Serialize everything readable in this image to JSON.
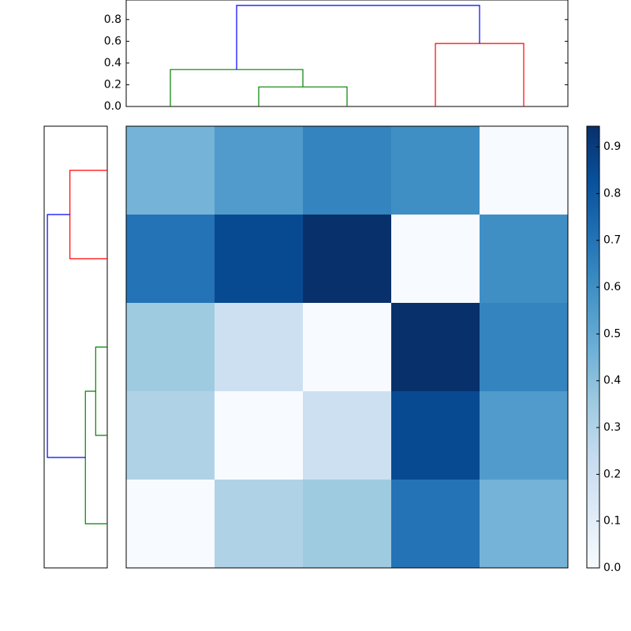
{
  "chart_data": [
    {
      "type": "dendrogram",
      "orientation": "top",
      "icoord": [
        [
          15,
          15,
          25,
          25
        ],
        [
          5,
          5,
          20,
          20
        ],
        [
          35,
          35,
          45,
          45
        ],
        [
          12.5,
          12.5,
          40,
          40
        ]
      ],
      "dcoord": [
        [
          0,
          0.18,
          0.18,
          0
        ],
        [
          0,
          0.34,
          0.34,
          0.18
        ],
        [
          0,
          0.58,
          0.58,
          0
        ],
        [
          0.34,
          0.93,
          0.93,
          0.58
        ]
      ],
      "link_colors": [
        "#008000",
        "#008000",
        "#ff0000",
        "#0000ff"
      ],
      "xlim": [
        0,
        50
      ],
      "ylim": [
        0,
        0.98
      ],
      "yticks": [
        {
          "value": 0,
          "label": "0.0"
        },
        {
          "value": 0.2,
          "label": "0.2"
        },
        {
          "value": 0.4,
          "label": "0.4"
        },
        {
          "value": 0.6,
          "label": "0.6"
        },
        {
          "value": 0.8,
          "label": "0.8"
        }
      ]
    },
    {
      "type": "dendrogram",
      "orientation": "left",
      "icoord": [
        [
          15,
          15,
          25,
          25
        ],
        [
          5,
          5,
          20,
          20
        ],
        [
          35,
          35,
          45,
          45
        ],
        [
          12.5,
          12.5,
          40,
          40
        ]
      ],
      "dcoord": [
        [
          0,
          0.18,
          0.18,
          0
        ],
        [
          0,
          0.34,
          0.34,
          0.18
        ],
        [
          0,
          0.58,
          0.58,
          0
        ],
        [
          0.34,
          0.93,
          0.93,
          0.58
        ]
      ],
      "link_colors": [
        "#008000",
        "#008000",
        "#ff0000",
        "#0000ff"
      ],
      "xlim": [
        0.98,
        0
      ],
      "ylim": [
        0,
        50
      ]
    },
    {
      "type": "heatmap",
      "values": [
        [
          0.45,
          0.55,
          0.64,
          0.6,
          0
        ],
        [
          0.7,
          0.85,
          0.944,
          0,
          0.6
        ],
        [
          0.35,
          0.2,
          0,
          0.944,
          0.64
        ],
        [
          0.3,
          0,
          0.2,
          0.85,
          0.55
        ],
        [
          0,
          0.3,
          0.35,
          0.7,
          0.45
        ]
      ],
      "colormap": [
        "#f7fbff",
        "#deebf7",
        "#c6dbef",
        "#9ecae1",
        "#6baed6",
        "#4292c6",
        "#2171b5",
        "#08519c",
        "#08306b"
      ],
      "clim": [
        0,
        0.944
      ],
      "cticks": [
        {
          "value": 0,
          "label": "0.0"
        },
        {
          "value": 0.1,
          "label": "0.1"
        },
        {
          "value": 0.2,
          "label": "0.2"
        },
        {
          "value": 0.3,
          "label": "0.3"
        },
        {
          "value": 0.4,
          "label": "0.4"
        },
        {
          "value": 0.5,
          "label": "0.5"
        },
        {
          "value": 0.6,
          "label": "0.6"
        },
        {
          "value": 0.7,
          "label": "0.7"
        },
        {
          "value": 0.8,
          "label": "0.8"
        },
        {
          "value": 0.9,
          "label": "0.9"
        }
      ]
    }
  ]
}
